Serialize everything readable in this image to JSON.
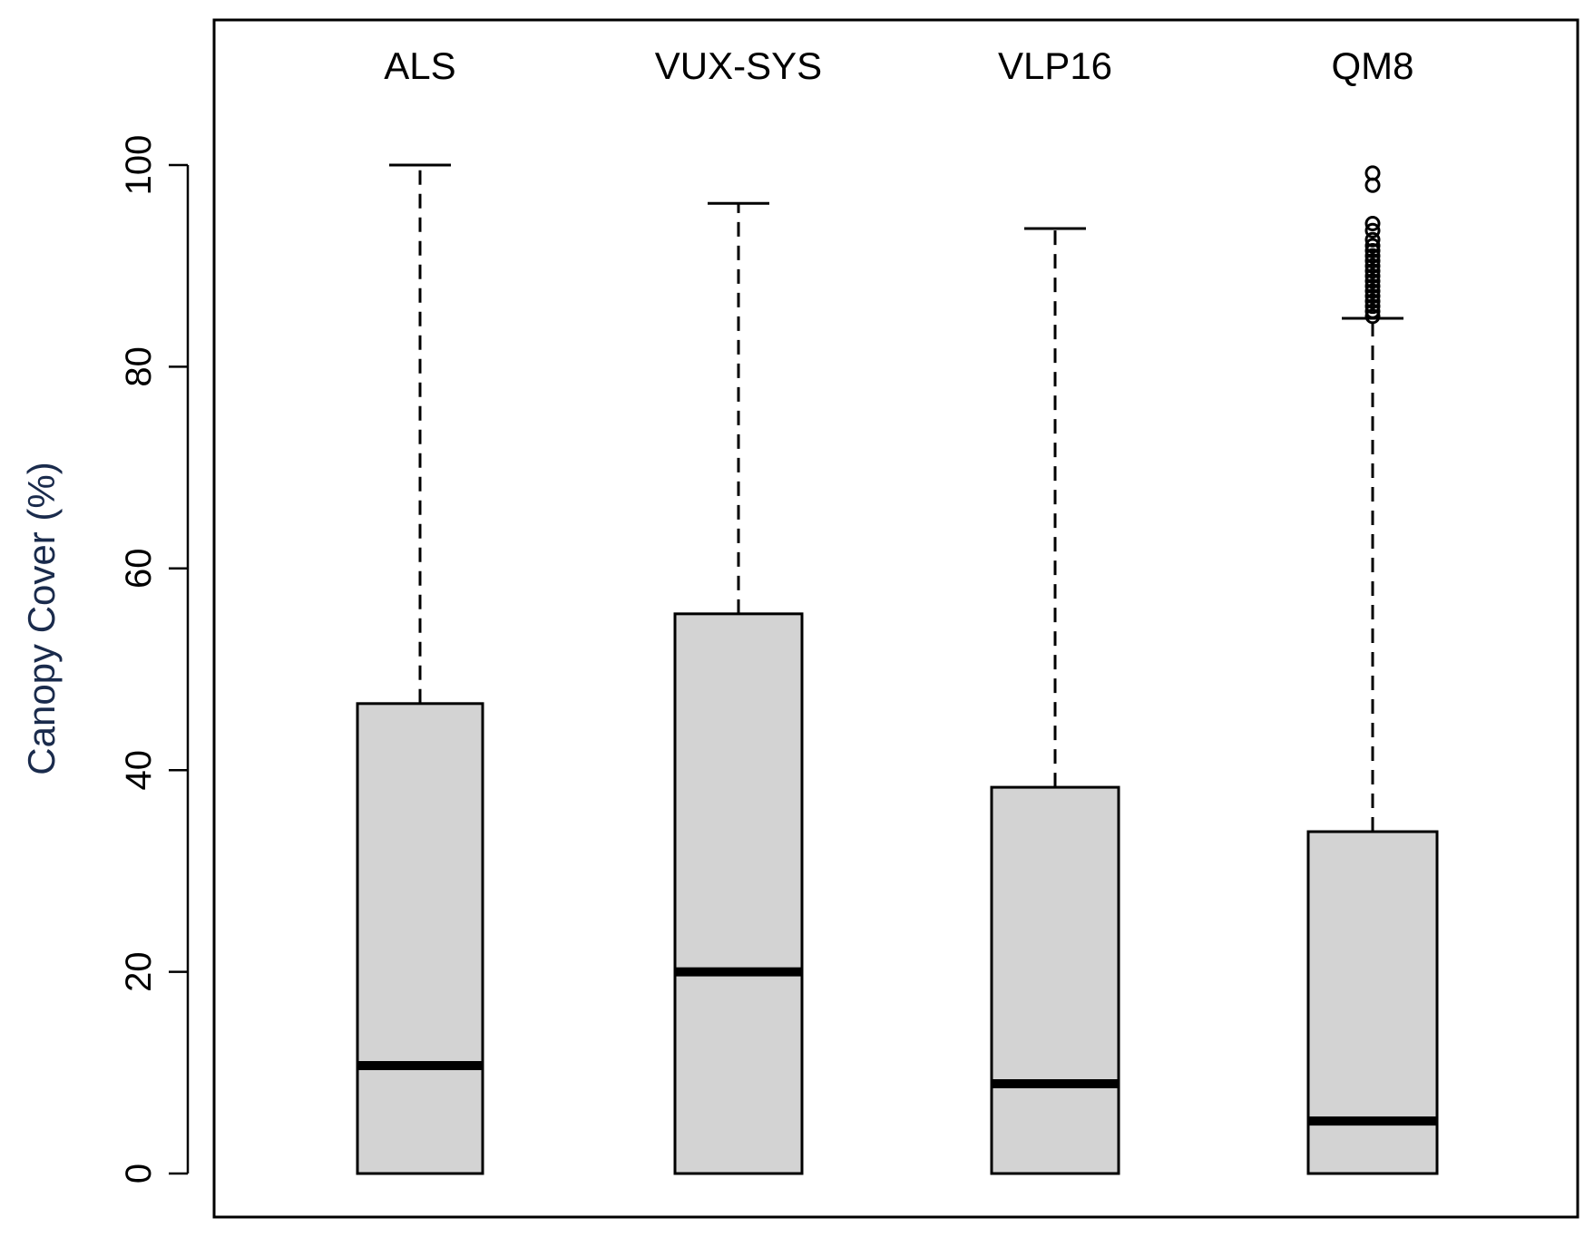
{
  "chart_data": {
    "type": "boxplot",
    "title": "",
    "xlabel": "",
    "ylabel": "Canopy Cover (%)",
    "ylim": [
      -8,
      115
    ],
    "yticks": [
      0,
      20,
      40,
      60,
      80,
      100
    ],
    "grid": false,
    "categories": [
      "ALS",
      "VUX-SYS",
      "VLP16",
      "QM8"
    ],
    "boxes": [
      {
        "name": "ALS",
        "min": 0,
        "q1": 0,
        "median": 10.7,
        "q3": 46.6,
        "max": 100,
        "outliers": []
      },
      {
        "name": "VUX-SYS",
        "min": 0,
        "q1": 0,
        "median": 20.0,
        "q3": 55.5,
        "max": 96.2,
        "outliers": []
      },
      {
        "name": "VLP16",
        "min": 0,
        "q1": 0,
        "median": 8.9,
        "q3": 38.3,
        "max": 93.7,
        "outliers": []
      },
      {
        "name": "QM8",
        "min": 0,
        "q1": 0,
        "median": 5.2,
        "q3": 33.9,
        "max": 84.8,
        "outliers": [
          85.0,
          85.5,
          86.0,
          86.5,
          87.0,
          87.5,
          88.0,
          88.5,
          89.0,
          89.5,
          90.0,
          90.5,
          91.0,
          91.5,
          92.0,
          92.6,
          93.5,
          94.2,
          98.0,
          99.2
        ]
      }
    ],
    "colors": {
      "box_fill": "#d3d3d3",
      "stroke": "#000000",
      "ylabel": "#1a2b4c"
    }
  }
}
